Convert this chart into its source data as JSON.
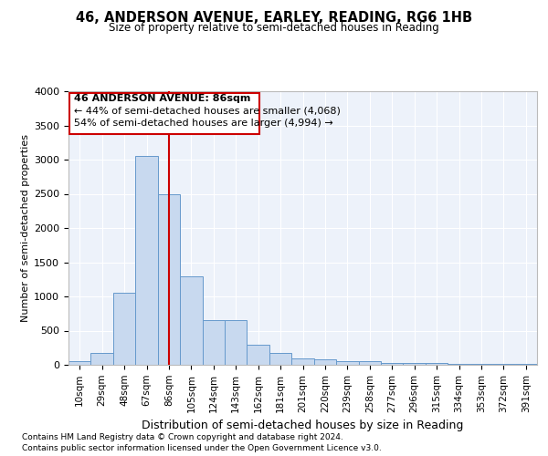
{
  "title1": "46, ANDERSON AVENUE, EARLEY, READING, RG6 1HB",
  "title2": "Size of property relative to semi-detached houses in Reading",
  "xlabel": "Distribution of semi-detached houses by size in Reading",
  "ylabel": "Number of semi-detached properties",
  "bar_labels": [
    "10sqm",
    "29sqm",
    "48sqm",
    "67sqm",
    "86sqm",
    "105sqm",
    "124sqm",
    "143sqm",
    "162sqm",
    "181sqm",
    "201sqm",
    "220sqm",
    "239sqm",
    "258sqm",
    "277sqm",
    "296sqm",
    "315sqm",
    "334sqm",
    "353sqm",
    "372sqm",
    "391sqm"
  ],
  "bar_values": [
    50,
    170,
    1050,
    3050,
    2500,
    1300,
    650,
    650,
    300,
    170,
    100,
    80,
    55,
    55,
    30,
    30,
    30,
    15,
    10,
    10,
    10
  ],
  "bar_color": "#c8d9ef",
  "bar_edge_color": "#6699cc",
  "highlight_index": 4,
  "highlight_line_color": "#cc0000",
  "ann_line1": "46 ANDERSON AVENUE: 86sqm",
  "ann_line2": "← 44% of semi-detached houses are smaller (4,068)",
  "ann_line3": "54% of semi-detached houses are larger (4,994) →",
  "annotation_box_color": "#cc0000",
  "ylim": [
    0,
    4000
  ],
  "yticks": [
    0,
    500,
    1000,
    1500,
    2000,
    2500,
    3000,
    3500,
    4000
  ],
  "background_color": "#edf2fa",
  "grid_color": "#ffffff",
  "footer1": "Contains HM Land Registry data © Crown copyright and database right 2024.",
  "footer2": "Contains public sector information licensed under the Open Government Licence v3.0."
}
